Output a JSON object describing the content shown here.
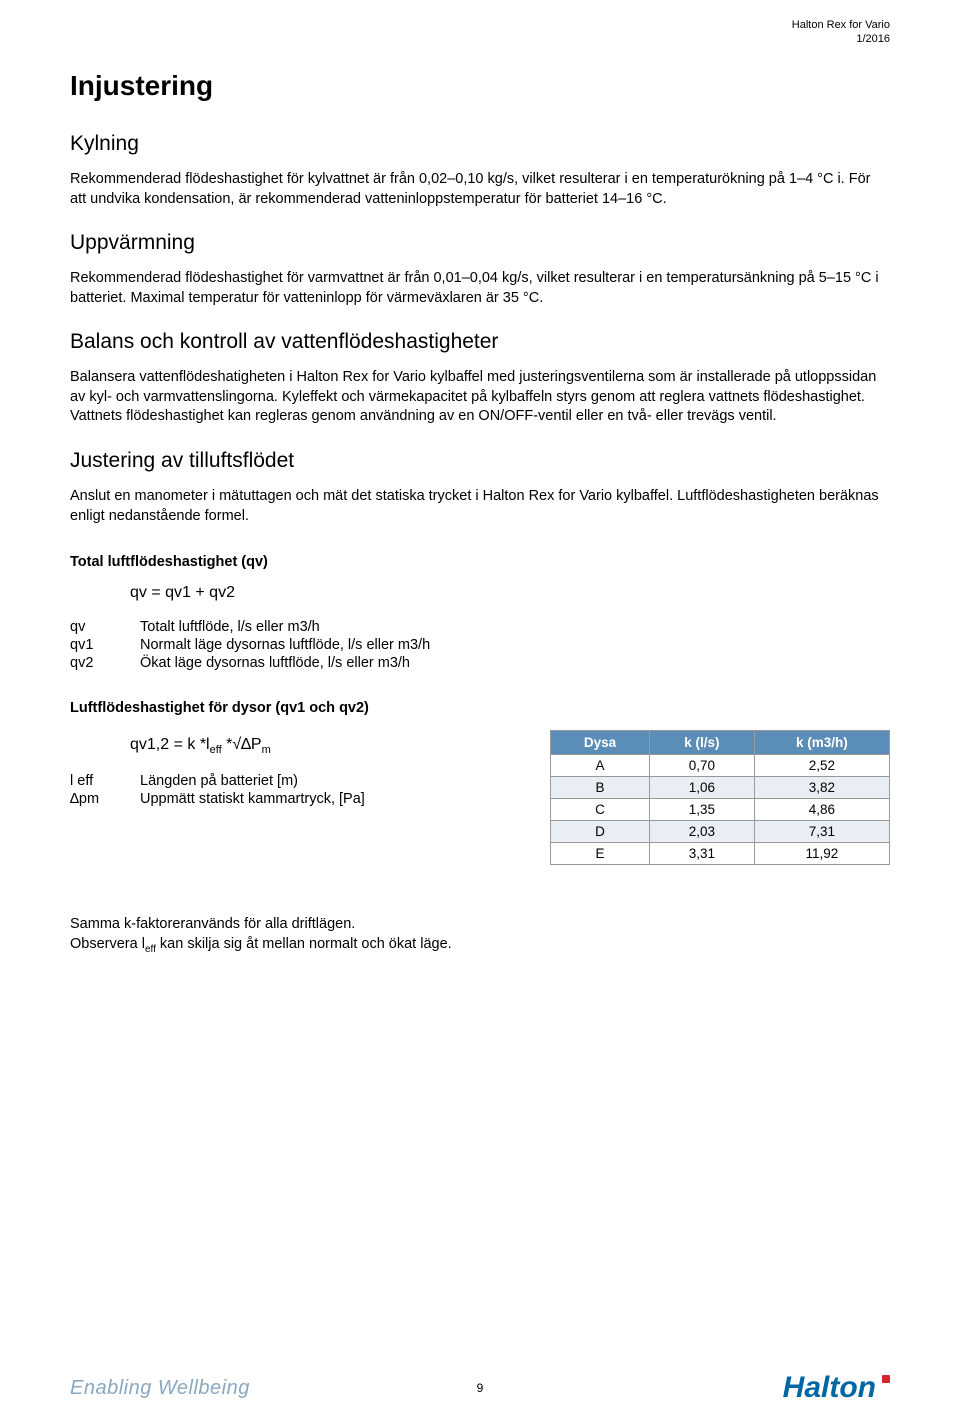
{
  "header": {
    "product": "Halton Rex for Vario",
    "date": "1/2016"
  },
  "title": "Injustering",
  "sections": {
    "kylning": {
      "heading": "Kylning",
      "text": "Rekommenderad flödeshastighet för kylvattnet är från 0,02–0,10 kg/s, vilket resulterar i en temperaturökning på 1–4 °C i. För att undvika kondensation, är rekommenderad vatteninloppstemperatur för batteriet 14–16 °C."
    },
    "uppvarmning": {
      "heading": "Uppvärmning",
      "text": "Rekommenderad flödeshastighet för varmvattnet är från 0,01–0,04 kg/s, vilket resulterar i en temperatursänkning på 5–15 °C i batteriet. Maximal temperatur för vatteninlopp för värmeväxlaren är 35 °C."
    },
    "balans": {
      "heading": "Balans och kontroll av vattenflödeshastigheter",
      "text": "Balansera vattenflödeshatigheten i Halton Rex for Vario kylbaffel med justeringsventilerna som är installerade på utloppssidan av kyl- och varmvattenslingorna. Kyleffekt och värmekapacitet på kylbaffeln styrs genom att reglera vattnets flödeshastighet. Vattnets flödeshastighet kan regleras genom användning av en ON/OFF-ventil eller en två- eller trevägs ventil."
    },
    "justering": {
      "heading": "Justering av tilluftsflödet",
      "text": "Anslut en manometer i mätuttagen och mät det statiska trycket i Halton Rex for Vario kylbaffel. Luftflödeshastigheten beräknas enligt nedanstående formel."
    }
  },
  "total_qv": {
    "heading": "Total luftflödeshastighet (qv)",
    "formula": "qv = qv1 + qv2",
    "defs": [
      {
        "sym": "qv",
        "desc": "Totalt luftflöde, l/s eller m3/h"
      },
      {
        "sym": "qv1",
        "desc": "Normalt läge dysornas luftflöde, l/s eller m3/h"
      },
      {
        "sym": "qv2",
        "desc": "Ökat läge dysornas luftflöde, l/s eller m3/h"
      }
    ]
  },
  "dysor": {
    "heading": "Luftflödeshastighet för dysor (qv1 och qv2)",
    "formula_text": "qv1,2 = k *l",
    "formula_sub1": "eff",
    "formula_mid": " *√∆P",
    "formula_sub2": "m",
    "defs": [
      {
        "sym1": "l ",
        "sub1": "eff",
        "desc": "Längden på batteriet [m)"
      },
      {
        "sym1": "∆p",
        "sub1": "m",
        "desc": "Uppmätt statiskt kammartryck, [Pa]"
      }
    ]
  },
  "ktable": {
    "headers": [
      "Dysa",
      "k (l/s)",
      "k (m3/h)"
    ],
    "rows": [
      [
        "A",
        "0,70",
        "2,52"
      ],
      [
        "B",
        "1,06",
        "3,82"
      ],
      [
        "C",
        "1,35",
        "4,86"
      ],
      [
        "D",
        "2,03",
        "7,31"
      ],
      [
        "E",
        "3,31",
        "11,92"
      ]
    ],
    "header_bg": "#5a8db8",
    "header_color": "#ffffff",
    "alt_row_bg": "#e8eef4",
    "border_color": "#999999"
  },
  "footnote": {
    "line1": "Samma k-faktoreranvänds för alla driftlägen.",
    "line2_pre": "Observera l",
    "line2_sub": "eff",
    "line2_post": " kan skilja sig åt mellan normalt och ökat läge."
  },
  "footer": {
    "tagline": "Enabling Wellbeing",
    "page": "9",
    "logo": "Halton"
  }
}
